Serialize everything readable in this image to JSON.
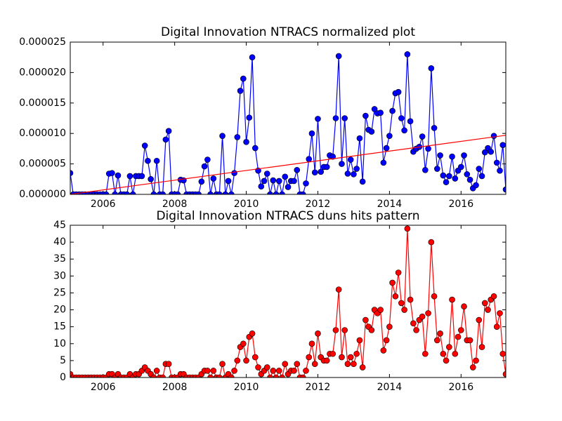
{
  "chart_data": [
    {
      "type": "line",
      "title": "Digital Innovation NTRACS normalized plot",
      "x": [
        2005.083,
        2005.167,
        2005.25,
        2005.333,
        2005.417,
        2005.5,
        2005.583,
        2005.667,
        2005.75,
        2005.833,
        2005.917,
        2006,
        2006.083,
        2006.167,
        2006.25,
        2006.333,
        2006.417,
        2006.5,
        2006.583,
        2006.667,
        2006.75,
        2006.833,
        2006.917,
        2007,
        2007.083,
        2007.167,
        2007.25,
        2007.333,
        2007.417,
        2007.5,
        2007.583,
        2007.667,
        2007.75,
        2007.833,
        2007.917,
        2008,
        2008.083,
        2008.167,
        2008.25,
        2008.333,
        2008.417,
        2008.5,
        2008.583,
        2008.667,
        2008.75,
        2008.833,
        2008.917,
        2009,
        2009.083,
        2009.167,
        2009.25,
        2009.333,
        2009.417,
        2009.5,
        2009.583,
        2009.667,
        2009.75,
        2009.833,
        2009.917,
        2010,
        2010.083,
        2010.167,
        2010.25,
        2010.333,
        2010.417,
        2010.5,
        2010.583,
        2010.667,
        2010.75,
        2010.833,
        2010.917,
        2011,
        2011.083,
        2011.167,
        2011.25,
        2011.333,
        2011.417,
        2011.5,
        2011.583,
        2011.667,
        2011.75,
        2011.833,
        2011.917,
        2012,
        2012.083,
        2012.167,
        2012.25,
        2012.333,
        2012.417,
        2012.5,
        2012.583,
        2012.667,
        2012.75,
        2012.833,
        2012.917,
        2013,
        2013.083,
        2013.167,
        2013.25,
        2013.333,
        2013.417,
        2013.5,
        2013.583,
        2013.667,
        2013.75,
        2013.833,
        2013.917,
        2014,
        2014.083,
        2014.167,
        2014.25,
        2014.333,
        2014.417,
        2014.5,
        2014.583,
        2014.667,
        2014.75,
        2014.833,
        2014.917,
        2015,
        2015.083,
        2015.167,
        2015.25,
        2015.333,
        2015.417,
        2015.5,
        2015.583,
        2015.667,
        2015.75,
        2015.833,
        2015.917,
        2016,
        2016.083,
        2016.167,
        2016.25,
        2016.333,
        2016.417,
        2016.5,
        2016.583,
        2016.667,
        2016.75,
        2016.833,
        2016.917,
        2017,
        2017.083,
        2017.167,
        2017.25
      ],
      "series": [
        {
          "color": "#0000ff",
          "values": [
            3.5e-06,
            0,
            0,
            0,
            0,
            0,
            0,
            0,
            0,
            0,
            0,
            0,
            0,
            3.4e-06,
            3.5e-06,
            0,
            3.1e-06,
            0,
            0,
            0,
            3e-06,
            0,
            3e-06,
            3e-06,
            3e-06,
            8e-06,
            5.5e-06,
            2.5e-06,
            0,
            5.5e-06,
            0,
            0,
            9e-06,
            1.04e-05,
            0,
            0,
            0,
            2.4e-06,
            2.3e-06,
            0,
            0,
            0,
            0,
            0,
            2.1e-06,
            4.6e-06,
            5.7e-06,
            0,
            2.6e-06,
            0,
            0,
            9.6e-06,
            0,
            2.2e-06,
            0,
            3.5e-06,
            9.4e-06,
            1.7e-05,
            1.9e-05,
            8.6e-06,
            1.26e-05,
            2.25e-05,
            7.6e-06,
            3.9e-06,
            1.3e-06,
            2.2e-06,
            3.4e-06,
            0,
            2.3e-06,
            0,
            2.2e-06,
            0,
            2.9e-06,
            1.2e-06,
            2.2e-06,
            2.2e-06,
            4e-06,
            0,
            0,
            1.8e-06,
            5.8e-06,
            1e-05,
            3.6e-06,
            1.24e-05,
            3.7e-06,
            4.5e-06,
            4.5e-06,
            6.4e-06,
            6.2e-06,
            1.25e-05,
            2.27e-05,
            5e-06,
            1.25e-05,
            3.4e-06,
            5.7e-06,
            3.3e-06,
            4.2e-06,
            9.2e-06,
            2.1e-06,
            1.29e-05,
            1.06e-05,
            1.03e-05,
            1.4e-05,
            1.33e-05,
            1.34e-05,
            5.2e-06,
            7.6e-06,
            9.6e-06,
            1.37e-05,
            1.66e-05,
            1.68e-05,
            1.25e-05,
            1.05e-05,
            2.3e-05,
            1.2e-05,
            7e-06,
            7.5e-06,
            7.8e-06,
            9.5e-06,
            4e-06,
            7.5e-06,
            2.07e-05,
            1.09e-05,
            4.2e-06,
            6.4e-06,
            3.1e-06,
            2e-06,
            3e-06,
            6.2e-06,
            2.6e-06,
            3.9e-06,
            4.5e-06,
            6.4e-06,
            3.3e-06,
            2.4e-06,
            1e-06,
            1.5e-06,
            4.2e-06,
            3e-06,
            6.9e-06,
            7.6e-06,
            7e-06,
            9.6e-06,
            5.2e-06,
            3.9e-06,
            8.1e-06,
            8e-07
          ]
        }
      ],
      "trend": {
        "color": "#ff0000",
        "x": [
          2005.083,
          2017.25
        ],
        "values": [
          0,
          9.7e-06
        ]
      },
      "xlim": [
        2005.083,
        2017.25
      ],
      "xticks": [
        2006,
        2008,
        2010,
        2012,
        2014,
        2016
      ],
      "ylim": [
        0,
        2.5e-05
      ],
      "yticks": [
        {
          "value": 0,
          "label": "0.000000"
        },
        {
          "value": 5e-06,
          "label": "0.000005"
        },
        {
          "value": 1e-05,
          "label": "0.000010"
        },
        {
          "value": 1.5e-05,
          "label": "0.000015"
        },
        {
          "value": 2e-05,
          "label": "0.000020"
        },
        {
          "value": 2.5e-05,
          "label": "0.000025"
        }
      ]
    },
    {
      "type": "line",
      "title": "Digital Innovation NTRACS duns hits pattern",
      "x": [
        2005.083,
        2005.167,
        2005.25,
        2005.333,
        2005.417,
        2005.5,
        2005.583,
        2005.667,
        2005.75,
        2005.833,
        2005.917,
        2006,
        2006.083,
        2006.167,
        2006.25,
        2006.333,
        2006.417,
        2006.5,
        2006.583,
        2006.667,
        2006.75,
        2006.833,
        2006.917,
        2007,
        2007.083,
        2007.167,
        2007.25,
        2007.333,
        2007.417,
        2007.5,
        2007.583,
        2007.667,
        2007.75,
        2007.833,
        2007.917,
        2008,
        2008.083,
        2008.167,
        2008.25,
        2008.333,
        2008.417,
        2008.5,
        2008.583,
        2008.667,
        2008.75,
        2008.833,
        2008.917,
        2009,
        2009.083,
        2009.167,
        2009.25,
        2009.333,
        2009.417,
        2009.5,
        2009.583,
        2009.667,
        2009.75,
        2009.833,
        2009.917,
        2010,
        2010.083,
        2010.167,
        2010.25,
        2010.333,
        2010.417,
        2010.5,
        2010.583,
        2010.667,
        2010.75,
        2010.833,
        2010.917,
        2011,
        2011.083,
        2011.167,
        2011.25,
        2011.333,
        2011.417,
        2011.5,
        2011.583,
        2011.667,
        2011.75,
        2011.833,
        2011.917,
        2012,
        2012.083,
        2012.167,
        2012.25,
        2012.333,
        2012.417,
        2012.5,
        2012.583,
        2012.667,
        2012.75,
        2012.833,
        2012.917,
        2013,
        2013.083,
        2013.167,
        2013.25,
        2013.333,
        2013.417,
        2013.5,
        2013.583,
        2013.667,
        2013.75,
        2013.833,
        2013.917,
        2014,
        2014.083,
        2014.167,
        2014.25,
        2014.333,
        2014.417,
        2014.5,
        2014.583,
        2014.667,
        2014.75,
        2014.833,
        2014.917,
        2015,
        2015.083,
        2015.167,
        2015.25,
        2015.333,
        2015.417,
        2015.5,
        2015.583,
        2015.667,
        2015.75,
        2015.833,
        2015.917,
        2016,
        2016.083,
        2016.167,
        2016.25,
        2016.333,
        2016.417,
        2016.5,
        2016.583,
        2016.667,
        2016.75,
        2016.833,
        2016.917,
        2017,
        2017.083,
        2017.167,
        2017.25
      ],
      "series": [
        {
          "color": "#ff0000",
          "values": [
            1,
            0,
            0,
            0,
            0,
            0,
            0,
            0,
            0,
            0,
            0,
            0,
            0,
            1,
            1,
            0,
            1,
            0,
            0,
            0,
            1,
            0,
            1,
            1,
            2,
            3,
            2,
            1,
            0,
            2,
            0,
            0,
            4,
            4,
            0,
            0,
            0,
            1,
            1,
            0,
            0,
            0,
            0,
            0,
            1,
            2,
            2,
            0,
            2,
            0,
            0,
            4,
            0,
            1,
            0,
            2,
            5,
            9,
            10,
            5,
            12,
            13,
            6,
            3,
            1,
            2,
            3,
            0,
            2,
            0,
            2,
            0,
            4,
            1,
            2,
            2,
            4,
            0,
            0,
            2,
            6,
            10,
            4,
            13,
            6,
            5,
            5,
            7,
            7,
            14,
            26,
            6,
            14,
            4,
            6,
            4,
            7,
            11,
            3,
            17,
            15,
            14,
            20,
            19,
            20,
            8,
            11,
            15,
            28,
            24,
            31,
            22,
            20,
            44,
            23,
            16,
            14,
            17,
            18,
            7,
            19,
            40,
            24,
            11,
            13,
            7,
            5,
            9,
            23,
            7,
            12,
            14,
            21,
            11,
            11,
            3,
            5,
            17,
            9,
            22,
            20,
            23,
            24,
            15,
            19,
            7,
            1
          ]
        }
      ],
      "xlim": [
        2005.083,
        2017.25
      ],
      "xticks": [
        2006,
        2008,
        2010,
        2012,
        2014,
        2016
      ],
      "ylim": [
        0,
        45
      ],
      "yticks": [
        0,
        5,
        10,
        15,
        20,
        25,
        30,
        35,
        40,
        45
      ]
    }
  ]
}
